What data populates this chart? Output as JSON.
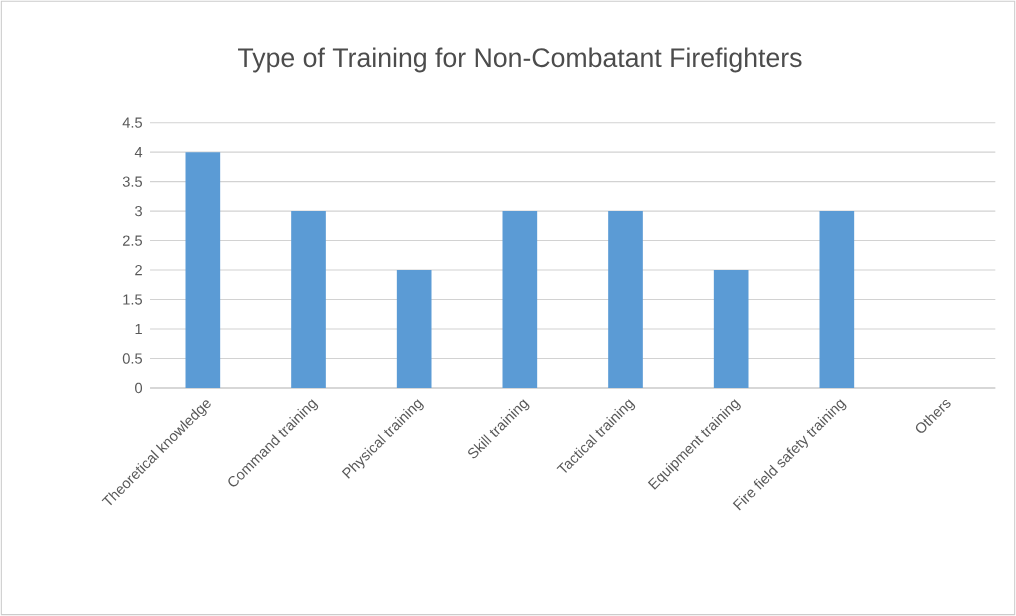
{
  "chart_data": {
    "type": "bar",
    "title": "Type of Training for Non-Combatant  Firefighters",
    "categories": [
      "Theoretical knowledge",
      "Command training",
      "Physical training",
      "Skill training",
      "Tactical training",
      "Equipment training",
      "Fire field safety training",
      "Others"
    ],
    "values": [
      4,
      3,
      2,
      3,
      3,
      2,
      3,
      0
    ],
    "color": "#5b9bd5",
    "ylim": [
      0,
      4.5
    ],
    "yticks": [
      0,
      0.5,
      1,
      1.5,
      2,
      2.5,
      3,
      3.5,
      4,
      4.5
    ],
    "grid": "y"
  }
}
